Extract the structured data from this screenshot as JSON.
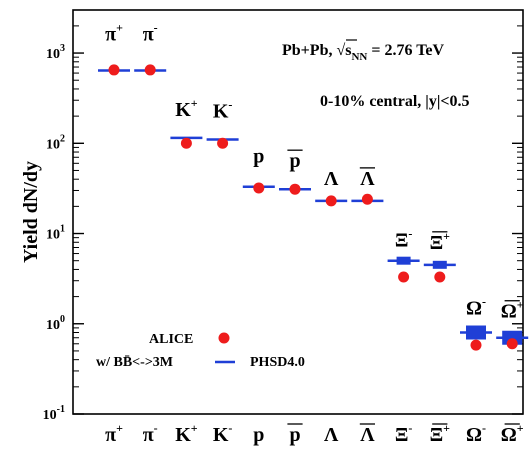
{
  "chart_data": {
    "type": "scatter",
    "ylabel": "Yield dN/dy",
    "y_scale": "log",
    "ylim": [
      0.1,
      3000
    ],
    "y_ticks": [
      {
        "value": 0.1,
        "base": "10",
        "exp": "-1"
      },
      {
        "value": 1,
        "base": "10",
        "exp": "0"
      },
      {
        "value": 10,
        "base": "10",
        "exp": "1"
      },
      {
        "value": 100,
        "base": "10",
        "exp": "2"
      },
      {
        "value": 1000,
        "base": "10",
        "exp": "3"
      }
    ],
    "categories": [
      {
        "base": "π",
        "sup": "+",
        "bar": false
      },
      {
        "base": "π",
        "sup": "-",
        "bar": false
      },
      {
        "base": "K",
        "sup": "+",
        "bar": false
      },
      {
        "base": "K",
        "sup": "-",
        "bar": false
      },
      {
        "base": "p",
        "sup": "",
        "bar": false
      },
      {
        "base": "p",
        "sup": "",
        "bar": true
      },
      {
        "base": "Λ",
        "sup": "",
        "bar": false
      },
      {
        "base": "Λ",
        "sup": "",
        "bar": true
      },
      {
        "base": "Ξ",
        "sup": "-",
        "bar": false
      },
      {
        "base": "Ξ",
        "sup": "+",
        "bar": true
      },
      {
        "base": "Ω",
        "sup": "-",
        "bar": false
      },
      {
        "base": "Ω",
        "sup": "+",
        "bar": true
      }
    ],
    "series": [
      {
        "name": "ALICE",
        "marker": "circle",
        "color": "#ee1c1c",
        "values": [
          650,
          650,
          100,
          100,
          32,
          31,
          23,
          24,
          3.3,
          3.3,
          0.58,
          0.6
        ]
      },
      {
        "name": "PHSD4.0",
        "marker": "line",
        "color": "#1f3fd6",
        "values": [
          640,
          640,
          115,
          110,
          33,
          31,
          23,
          23,
          5.0,
          4.5,
          0.8,
          0.7
        ]
      }
    ],
    "annotations": {
      "system": "Pb+Pb, ",
      "sqrt": "√",
      "s": "s",
      "s_sub": "NN",
      "energy": " = 2.76 TeV",
      "centrality": "0-10% central, |y|<0.5",
      "note": "w/  BB̄<->3M"
    }
  }
}
